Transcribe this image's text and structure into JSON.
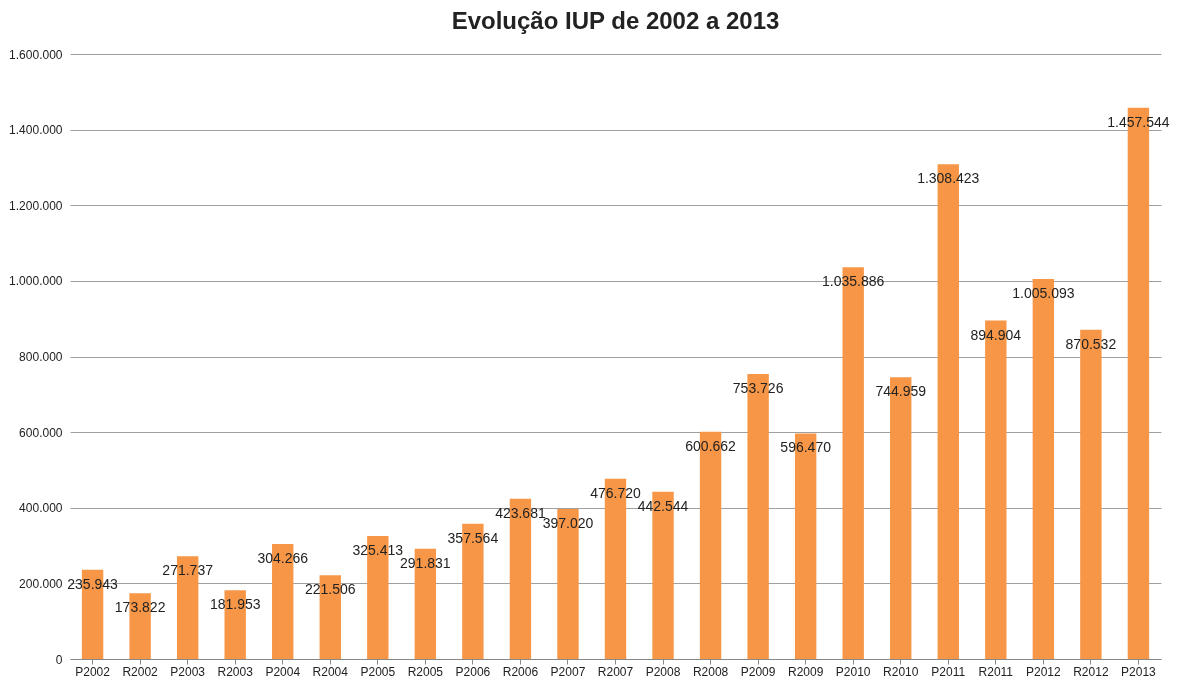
{
  "chart_data": {
    "type": "bar",
    "title": "Evolução IUP de 2002 a 2013",
    "categories": [
      "P2002",
      "R2002",
      "P2003",
      "R2003",
      "P2004",
      "R2004",
      "P2005",
      "R2005",
      "P2006",
      "R2006",
      "P2007",
      "R2007",
      "P2008",
      "R2008",
      "P2009",
      "R2009",
      "P2010",
      "R2010",
      "P2011",
      "R2011",
      "P2012",
      "R2012",
      "P2013"
    ],
    "values": [
      235943,
      173822,
      271737,
      181953,
      304266,
      221506,
      325413,
      291831,
      357564,
      423681,
      397020,
      476720,
      442544,
      600662,
      753726,
      596470,
      1035886,
      744959,
      1308423,
      894904,
      1005093,
      870532,
      1457544
    ],
    "value_labels": [
      "235.943",
      "173.822",
      "271.737",
      "181.953",
      "304.266",
      "221.506",
      "325.413",
      "291.831",
      "357.564",
      "423.681",
      "397.020",
      "476.720",
      "442.544",
      "600.662",
      "753.726",
      "596.470",
      "1.035.886",
      "744.959",
      "1.308.423",
      "894.904",
      "1.005.093",
      "870.532",
      "1.457.544"
    ],
    "color": "#f79646",
    "ylim": [
      0,
      1600000
    ],
    "yticks": [
      0,
      {
        "value": 200000,
        "label": "200.000"
      },
      {
        "value": 400000,
        "label": "400.000"
      },
      {
        "value": 600000,
        "label": "600.000"
      },
      {
        "value": 800000,
        "label": "800.000"
      },
      {
        "value": 1000000,
        "label": "1.000.000"
      },
      {
        "value": 1200000,
        "label": "1.200.000"
      },
      {
        "value": 1400000,
        "label": "1.400.000"
      },
      {
        "value": 1600000,
        "label": "1.600.000"
      }
    ],
    "grid": "y"
  }
}
